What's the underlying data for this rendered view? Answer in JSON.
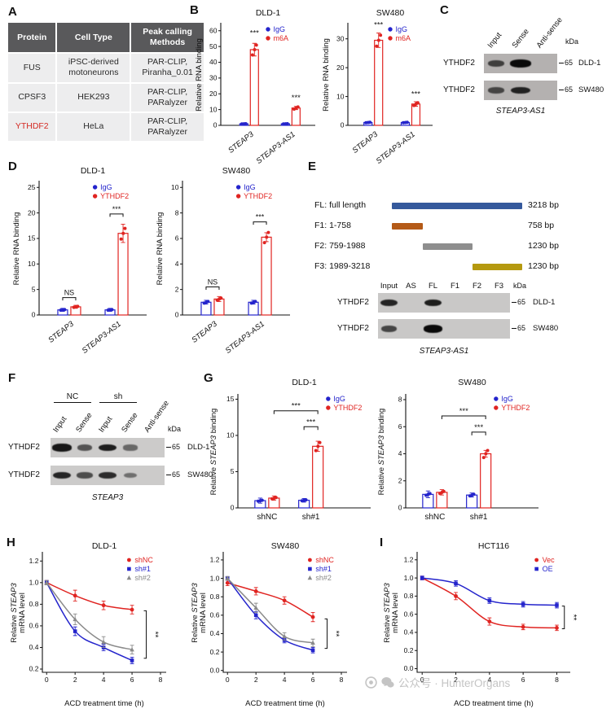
{
  "panels": {
    "a": "A",
    "b": "B",
    "c": "C",
    "d": "D",
    "e": "E",
    "f": "F",
    "g": "G",
    "h": "H",
    "i": "I"
  },
  "table": {
    "headers": [
      "Protein",
      "Cell Type",
      "Peak calling Methods"
    ],
    "rows": [
      [
        "FUS",
        "iPSC-derived motoneurons",
        "PAR-CLIP, Piranha_0.01"
      ],
      [
        "CPSF3",
        "HEK293",
        "PAR-CLIP, PARalyzer"
      ],
      [
        "YTHDF2",
        "HeLa",
        "PAR-CLIP, PARalyzer"
      ]
    ],
    "red_cells": [
      [
        2,
        0
      ]
    ]
  },
  "fragments": {
    "rows": [
      {
        "name": "FL: full length",
        "bp": "3218 bp",
        "color": "#35599c",
        "start": 0,
        "end": 1
      },
      {
        "name": "F1: 1-758",
        "bp": "758 bp",
        "color": "#b45a17",
        "start": 0,
        "end": 0.235
      },
      {
        "name": "F2: 759-1988",
        "bp": "1230 bp",
        "color": "#8e8e8e",
        "start": 0.235,
        "end": 0.618
      },
      {
        "name": "F3: 1989-3218",
        "bp": "1230 bp",
        "color": "#b5990f",
        "start": 0.618,
        "end": 1
      }
    ]
  },
  "blots": [
    {
      "id": "blotC",
      "kda": "kDa",
      "lanes": [
        "Input",
        "Sense",
        "Anti-sense"
      ],
      "rows": [
        {
          "protein": "YTHDF2",
          "bands": [
            0.55,
            1,
            0
          ],
          "marker": "65",
          "cell": "DLD-1"
        },
        {
          "protein": "YTHDF2",
          "bands": [
            0.5,
            0.8,
            0
          ],
          "marker": "65",
          "cell": "SW480"
        }
      ],
      "caption": "STEAP3-AS1"
    },
    {
      "id": "blotE",
      "kda": "kDa",
      "lanes": [
        "Input",
        "AS",
        "FL",
        "F1",
        "F2",
        "F3"
      ],
      "rows": [
        {
          "protein": "YTHDF2",
          "bands": [
            0.8,
            0,
            0.85,
            0,
            0,
            0
          ],
          "marker": "65",
          "cell": "DLD-1"
        },
        {
          "protein": "YTHDF2",
          "bands": [
            0.55,
            0,
            1,
            0,
            0,
            0
          ],
          "marker": "65",
          "cell": "SW480"
        }
      ],
      "caption": "STEAP3-AS1"
    },
    {
      "id": "blotF",
      "kda": "kDa",
      "groups": [
        {
          "label": "NC",
          "from": 0,
          "to": 1
        },
        {
          "label": "sh",
          "from": 2,
          "to": 3
        }
      ],
      "lanes": [
        "Input",
        "Sense",
        "Input",
        "Sense",
        "Anti-sense"
      ],
      "rows": [
        {
          "protein": "YTHDF2",
          "bands": [
            0.9,
            0.45,
            0.85,
            0.3,
            0
          ],
          "marker": "65",
          "cell": "DLD-1"
        },
        {
          "protein": "YTHDF2",
          "bands": [
            0.8,
            0.5,
            0.75,
            0.25,
            0
          ],
          "marker": "65",
          "cell": "SW480"
        }
      ],
      "caption": "STEAP3"
    }
  ],
  "chart_data": [
    {
      "id": "B1",
      "type": "bar",
      "title": "DLD-1",
      "ylabel": "Relative RNA binding",
      "ylabel_italics": [],
      "ylim": [
        0,
        64
      ],
      "yticks": [
        "0",
        "10",
        "20",
        "30",
        "40",
        "50",
        "60"
      ],
      "categories": [
        {
          "label": "STEAP3",
          "italic": true
        },
        {
          "label": "STEAP3-AS1",
          "italic": true
        }
      ],
      "series": [
        {
          "name": "IgG",
          "color": "#2424cc",
          "values": [
            1,
            1
          ],
          "errors": [
            0.5,
            0.5
          ]
        },
        {
          "name": "m6A",
          "color": "#e02421",
          "values": [
            48,
            11
          ],
          "errors": [
            4,
            1
          ]
        }
      ],
      "annotations": [
        {
          "type": "star",
          "label": "***",
          "cat": 0,
          "series": 1,
          "y": 57
        },
        {
          "type": "star",
          "label": "***",
          "cat": 1,
          "series": 1,
          "y": 16
        }
      ]
    },
    {
      "id": "B2",
      "type": "bar",
      "title": "SW480",
      "ylabel": "Relative RNA binding",
      "ylabel_italics": [],
      "ylim": [
        0,
        35
      ],
      "yticks": [
        "0",
        "10",
        "20",
        "30"
      ],
      "categories": [
        {
          "label": "STEAP3",
          "italic": true
        },
        {
          "label": "STEAP3-AS1",
          "italic": true
        }
      ],
      "series": [
        {
          "name": "IgG",
          "color": "#2424cc",
          "values": [
            1,
            1
          ],
          "errors": [
            0.3,
            0.3
          ]
        },
        {
          "name": "m6A",
          "color": "#e02421",
          "values": [
            29.5,
            7.4
          ],
          "errors": [
            2.5,
            0.8
          ]
        }
      ],
      "annotations": [
        {
          "type": "star",
          "label": "***",
          "cat": 0,
          "series": 1,
          "y": 34
        },
        {
          "type": "star",
          "label": "***",
          "cat": 1,
          "series": 1,
          "y": 10
        }
      ]
    },
    {
      "id": "D1",
      "type": "bar",
      "title": "DLD-1",
      "ylabel": "Relative RNA binding",
      "ylabel_italics": [],
      "ylim": [
        0,
        26
      ],
      "yticks": [
        "0",
        "5",
        "10",
        "15",
        "20",
        "25"
      ],
      "categories": [
        {
          "label": "STEAP3",
          "italic": true
        },
        {
          "label": "STEAP3-AS1",
          "italic": true
        }
      ],
      "series": [
        {
          "name": "IgG",
          "color": "#2424cc",
          "values": [
            1,
            1
          ],
          "errors": [
            0.3,
            0.3
          ]
        },
        {
          "name": "YTHDF2",
          "color": "#e02421",
          "values": [
            1.6,
            16
          ],
          "errors": [
            0.3,
            1.8
          ]
        }
      ],
      "annotations": [
        {
          "type": "pair",
          "label": "NS",
          "cat": 0,
          "y": 3.4
        },
        {
          "type": "pair",
          "label": "***",
          "cat": 1,
          "y": 19.8
        }
      ]
    },
    {
      "id": "D2",
      "type": "bar",
      "title": "SW480",
      "ylabel": "Relative RNA binding",
      "ylabel_italics": [],
      "ylim": [
        0,
        10.4
      ],
      "yticks": [
        "0",
        "2",
        "4",
        "6",
        "8",
        "10"
      ],
      "categories": [
        {
          "label": "STEAP3",
          "italic": true
        },
        {
          "label": "STEAP3-AS1",
          "italic": true
        }
      ],
      "series": [
        {
          "name": "IgG",
          "color": "#2424cc",
          "values": [
            1,
            1
          ],
          "errors": [
            0.15,
            0.15
          ]
        },
        {
          "name": "YTHDF2",
          "color": "#e02421",
          "values": [
            1.25,
            6.1
          ],
          "errors": [
            0.2,
            0.35
          ]
        }
      ],
      "annotations": [
        {
          "type": "pair",
          "label": "NS",
          "cat": 0,
          "y": 2.2
        },
        {
          "type": "pair",
          "label": "***",
          "cat": 1,
          "y": 7.3
        }
      ]
    },
    {
      "id": "G1",
      "type": "bar",
      "title": "DLD-1",
      "ylabel": "Relative STEAP3 binding",
      "ylabel_italics": [
        "STEAP3"
      ],
      "ylim": [
        0,
        15.5
      ],
      "yticks": [
        "0",
        "5",
        "10",
        "15"
      ],
      "categories": [
        {
          "label": "shNC",
          "italic": false
        },
        {
          "label": "sh#1",
          "italic": false
        }
      ],
      "series": [
        {
          "name": "IgG",
          "color": "#2424cc",
          "values": [
            1,
            1.05
          ],
          "errors": [
            0.35,
            0.25
          ]
        },
        {
          "name": "YTHDF2",
          "color": "#e02421",
          "values": [
            1.35,
            8.5
          ],
          "errors": [
            0.3,
            0.7
          ]
        }
      ],
      "annotations": [
        {
          "type": "bracket",
          "label": "***",
          "from": [
            0,
            1
          ],
          "to": [
            1,
            1
          ],
          "y": 13.4
        },
        {
          "type": "bracket",
          "label": "***",
          "from": [
            1,
            0
          ],
          "to": [
            1,
            1
          ],
          "y": 11.2
        }
      ]
    },
    {
      "id": "G2",
      "type": "bar",
      "title": "SW480",
      "ylabel": "Relative STEAP3 binding",
      "ylabel_italics": [
        "STEAP3"
      ],
      "ylim": [
        0,
        8.3
      ],
      "yticks": [
        "0",
        "2",
        "4",
        "6",
        "8"
      ],
      "categories": [
        {
          "label": "shNC",
          "italic": false
        },
        {
          "label": "sh#1",
          "italic": false
        }
      ],
      "series": [
        {
          "name": "IgG",
          "color": "#2424cc",
          "values": [
            1,
            0.95
          ],
          "errors": [
            0.25,
            0.15
          ]
        },
        {
          "name": "YTHDF2",
          "color": "#e02421",
          "values": [
            1.15,
            4.0
          ],
          "errors": [
            0.2,
            0.25
          ]
        }
      ],
      "annotations": [
        {
          "type": "bracket",
          "label": "***",
          "from": [
            0,
            1
          ],
          "to": [
            1,
            1
          ],
          "y": 6.8
        },
        {
          "type": "bracket",
          "label": "***",
          "from": [
            1,
            0
          ],
          "to": [
            1,
            1
          ],
          "y": 5.6
        }
      ]
    },
    {
      "id": "H1",
      "type": "line",
      "title": "DLD-1",
      "ylabel": "Relative STEAP3",
      "ylabel2": "mRNA level",
      "ylabel_italics": [
        "STEAP3"
      ],
      "xlabel": "ACD treatment time (h)",
      "xlim": [
        -0.3,
        8.4
      ],
      "xticks": [
        "0",
        "2",
        "4",
        "6",
        "8"
      ],
      "ylim": [
        0.17,
        1.27
      ],
      "yticks": [
        "0.2",
        "0.4",
        "0.6",
        "0.8",
        "1.0",
        "1.2"
      ],
      "series": [
        {
          "name": "shNC",
          "color": "#e02421",
          "marker": "circle",
          "x": [
            0,
            2,
            4,
            6
          ],
          "y": [
            1.0,
            0.88,
            0.79,
            0.75
          ],
          "err": [
            0.02,
            0.05,
            0.04,
            0.04
          ]
        },
        {
          "name": "sh#1",
          "color": "#2424cc",
          "marker": "square",
          "x": [
            0,
            2,
            4,
            6
          ],
          "y": [
            1.0,
            0.55,
            0.4,
            0.28
          ],
          "err": [
            0.02,
            0.04,
            0.03,
            0.03
          ]
        },
        {
          "name": "sh#2",
          "color": "#8a8a8a",
          "marker": "triangle",
          "x": [
            0,
            2,
            4,
            6
          ],
          "y": [
            1.0,
            0.66,
            0.45,
            0.38
          ],
          "err": [
            0.02,
            0.05,
            0.05,
            0.04
          ]
        }
      ],
      "sig": {
        "label": "**",
        "x": 7.0,
        "y1": 0.74,
        "y2": 0.3
      }
    },
    {
      "id": "H2",
      "type": "line",
      "title": "SW480",
      "ylabel": "Relative STEAP3",
      "ylabel2": "mRNA level",
      "ylabel_italics": [
        "STEAP3"
      ],
      "xlabel": "ACD treatment time (h)",
      "xlim": [
        -0.3,
        8.4
      ],
      "xticks": [
        "0",
        "2",
        "4",
        "6",
        "8"
      ],
      "ylim": [
        -0.02,
        1.27
      ],
      "yticks": [
        "0.0",
        "0.2",
        "0.4",
        "0.6",
        "0.8",
        "1.0",
        "1.2"
      ],
      "series": [
        {
          "name": "shNC",
          "color": "#e02421",
          "marker": "circle",
          "x": [
            0,
            2,
            4,
            6
          ],
          "y": [
            0.95,
            0.86,
            0.76,
            0.58
          ],
          "err": [
            0.03,
            0.04,
            0.04,
            0.05
          ]
        },
        {
          "name": "sh#1",
          "color": "#2424cc",
          "marker": "square",
          "x": [
            0,
            2,
            4,
            6
          ],
          "y": [
            1.0,
            0.6,
            0.33,
            0.22
          ],
          "err": [
            0.02,
            0.04,
            0.03,
            0.03
          ]
        },
        {
          "name": "sh#2",
          "color": "#8a8a8a",
          "marker": "triangle",
          "x": [
            0,
            2,
            4,
            6
          ],
          "y": [
            1.0,
            0.68,
            0.37,
            0.3
          ],
          "err": [
            0.02,
            0.05,
            0.04,
            0.04
          ]
        }
      ],
      "sig": {
        "label": "**",
        "x": 7.0,
        "y1": 0.56,
        "y2": 0.24
      }
    },
    {
      "id": "I",
      "type": "line",
      "title": "HCT116",
      "ylabel": "Relative STEAP3",
      "ylabel2": "mRNA level",
      "ylabel_italics": [
        "STEAP3"
      ],
      "xlabel": "ACD treatment time (h)",
      "xlim": [
        -0.3,
        8.8
      ],
      "xticks": [
        "0",
        "2",
        "4",
        "6",
        "8"
      ],
      "ylim": [
        -0.04,
        1.27
      ],
      "yticks": [
        "0.0",
        "0.2",
        "0.4",
        "0.6",
        "0.8",
        "1.0",
        "1.2"
      ],
      "series": [
        {
          "name": "Vec",
          "color": "#e02421",
          "marker": "circle",
          "x": [
            0,
            2,
            4,
            6,
            8
          ],
          "y": [
            1.0,
            0.8,
            0.52,
            0.46,
            0.45
          ],
          "err": [
            0.02,
            0.04,
            0.04,
            0.03,
            0.03
          ]
        },
        {
          "name": "OE",
          "color": "#2424cc",
          "marker": "square",
          "x": [
            0,
            2,
            4,
            6,
            8
          ],
          "y": [
            1.0,
            0.94,
            0.75,
            0.71,
            0.7
          ],
          "err": [
            0.02,
            0.03,
            0.03,
            0.03,
            0.03
          ]
        }
      ],
      "sig": {
        "label": "**",
        "x": 8.45,
        "y1": 0.69,
        "y2": 0.44
      }
    }
  ],
  "watermark": {
    "icons": [
      "aperture-icon",
      "wechat-bubble-icon"
    ],
    "text": "公众号 · HunterOrgans"
  }
}
